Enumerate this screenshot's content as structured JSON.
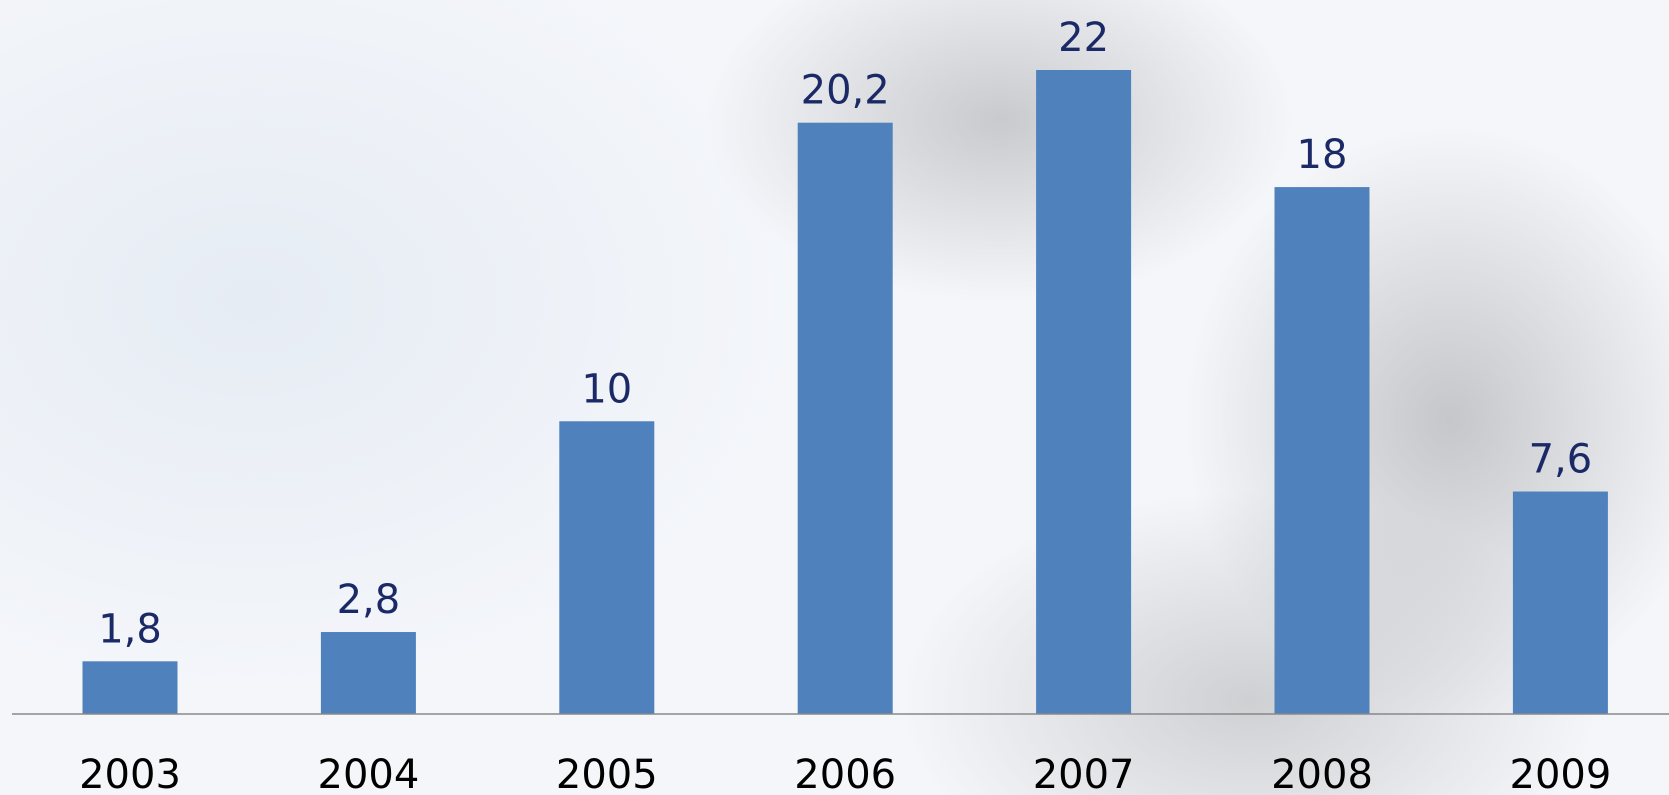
{
  "chart_data": {
    "type": "bar",
    "categories": [
      "2003",
      "2004",
      "2005",
      "2006",
      "2007",
      "2008",
      "2009"
    ],
    "values": [
      1.8,
      2.8,
      10,
      20.2,
      22,
      18,
      7.6
    ],
    "value_labels": [
      "1,8",
      "2,8",
      "10",
      "20,2",
      "22",
      "18",
      "7,6"
    ],
    "color": "#4f81bd"
  }
}
